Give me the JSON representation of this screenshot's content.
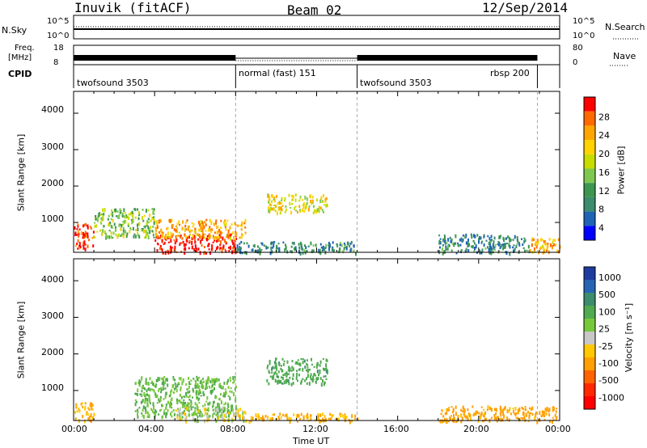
{
  "header": {
    "station": "Inuvik (fitACF)",
    "beam": "Beam 02",
    "date": "12/Sep/2014"
  },
  "top_panel": {
    "left_label": "N.Sky",
    "right_label": "N.Search",
    "y_top_label": "10^5",
    "y_bottom_label": "10^0"
  },
  "freq_panel": {
    "label_line1": "Freq.",
    "label_line2": "[MHz]",
    "y_top": "18",
    "y_bottom": "8",
    "right_label": "Nave",
    "right_top": "80",
    "right_bottom": "0"
  },
  "cpid": {
    "label": "CPID",
    "segments": [
      "twofsound 3503",
      "normal (fast) 151",
      "twofsound 3503",
      "rbsp 200"
    ]
  },
  "power_panel": {
    "ylabel": "Slant Range [km]",
    "yticks": [
      "1000",
      "2000",
      "3000",
      "4000"
    ],
    "cbar_label": "Power [dB]",
    "cbar_ticks": [
      "28",
      "24",
      "20",
      "16",
      "12",
      "8",
      "4"
    ],
    "cbar_colors": [
      "#ff0000",
      "#ff6a00",
      "#ffa500",
      "#ffd200",
      "#c8dc00",
      "#7ec850",
      "#3c9650",
      "#3c8c6e",
      "#1e64b4",
      "#0000ff"
    ]
  },
  "velocity_panel": {
    "ylabel": "Slant Range [km]",
    "yticks": [
      "1000",
      "2000",
      "3000",
      "4000"
    ],
    "cbar_label": "Velocity [m s⁻¹]",
    "cbar_ticks": [
      "1000",
      "500",
      "100",
      "25",
      "-25",
      "-100",
      "-500",
      "-1000"
    ],
    "cbar_colors": [
      "#1e3ca0",
      "#2864b4",
      "#3c8c6e",
      "#50aa50",
      "#78c83c",
      "#c8c8c8",
      "#ffc800",
      "#ffa000",
      "#ff6400",
      "#ff2800",
      "#ff0000"
    ]
  },
  "xaxis": {
    "ticks": [
      "00:00",
      "04:00",
      "08:00",
      "12:00",
      "16:00",
      "20:00",
      "00:00"
    ],
    "label": "Time UT"
  },
  "chart_data": {
    "type": "heatmap",
    "title": "Inuvik (fitACF)  Beam 02  12/Sep/2014",
    "xlabel": "Time UT",
    "ylabel": "Slant Range [km]",
    "xlim_hours": [
      0,
      24
    ],
    "ylim_km": [
      180,
      4600
    ],
    "mode_changes_hours": [
      8.0,
      14.0,
      22.9
    ],
    "power_regions": [
      {
        "t": [
          0.0,
          1.0
        ],
        "r": [
          300,
          1000
        ],
        "dB": 28
      },
      {
        "t": [
          1.0,
          4.0
        ],
        "r": [
          600,
          1400
        ],
        "dB": 14
      },
      {
        "t": [
          4.0,
          8.0
        ],
        "r": [
          180,
          700
        ],
        "dB": 30
      },
      {
        "t": [
          4.0,
          8.5
        ],
        "r": [
          600,
          1100
        ],
        "dB": 22
      },
      {
        "t": [
          8.0,
          14.0
        ],
        "r": [
          180,
          500
        ],
        "dB": 8
      },
      {
        "t": [
          9.5,
          12.5
        ],
        "r": [
          1300,
          1800
        ],
        "dB": 18
      },
      {
        "t": [
          18.0,
          22.5
        ],
        "r": [
          180,
          700
        ],
        "dB": 8
      },
      {
        "t": [
          22.5,
          24.0
        ],
        "r": [
          180,
          600
        ],
        "dB": 22
      }
    ],
    "velocity_regions": [
      {
        "t": [
          0.0,
          1.0
        ],
        "r": [
          200,
          700
        ],
        "v": -120
      },
      {
        "t": [
          3.0,
          8.0
        ],
        "r": [
          300,
          1400
        ],
        "v": 100
      },
      {
        "t": [
          5.0,
          8.5
        ],
        "r": [
          180,
          600
        ],
        "v": 0
      },
      {
        "t": [
          9.5,
          12.5
        ],
        "r": [
          1200,
          1900
        ],
        "v": 200
      },
      {
        "t": [
          8.0,
          14.0
        ],
        "r": [
          180,
          400
        ],
        "v": -100
      },
      {
        "t": [
          18.0,
          24.0
        ],
        "r": [
          180,
          600
        ],
        "v": -150
      }
    ]
  }
}
